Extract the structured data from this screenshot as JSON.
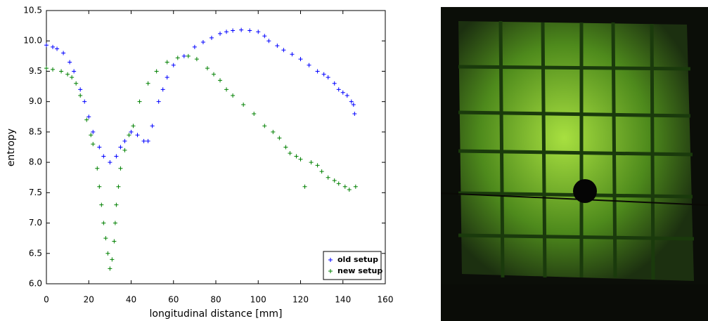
{
  "chart_data": {
    "type": "scatter",
    "xlabel": "longitudinal distance [mm]",
    "ylabel": "entropy",
    "xlim": [
      0,
      160
    ],
    "xticks": [
      0,
      20,
      40,
      60,
      80,
      100,
      120,
      140,
      160
    ],
    "ylim": [
      6.0,
      10.5
    ],
    "yticks": [
      {
        "value": 6,
        "label": "6.0"
      },
      6.5,
      {
        "value": 7,
        "label": "7.0"
      },
      7.5,
      {
        "value": 8,
        "label": "8.0"
      },
      8.5,
      {
        "value": 9,
        "label": "9.0"
      },
      9.5,
      {
        "value": 10,
        "label": "10.0"
      },
      10.5
    ],
    "legend": "lower right",
    "marker": "+",
    "series": [
      {
        "name": "old setup",
        "color": "#0000ff",
        "x": [
          0,
          3,
          5,
          8,
          11,
          13,
          16,
          18,
          20,
          22,
          25,
          27,
          30,
          33,
          35,
          37,
          40,
          43,
          46,
          48,
          50,
          53,
          55,
          57,
          60,
          65,
          70,
          74,
          78,
          82,
          85,
          88,
          92,
          96,
          100,
          103,
          105,
          109,
          112,
          116,
          120,
          124,
          128,
          131,
          133,
          136,
          138,
          140,
          142,
          144,
          145,
          145.5
        ],
        "values": [
          9.93,
          9.9,
          9.87,
          9.8,
          9.65,
          9.5,
          9.2,
          9.0,
          8.75,
          8.5,
          8.25,
          8.1,
          8.0,
          8.1,
          8.25,
          8.35,
          8.5,
          8.45,
          8.35,
          8.35,
          8.6,
          9.0,
          9.2,
          9.4,
          9.6,
          9.75,
          9.9,
          9.98,
          10.05,
          10.12,
          10.15,
          10.17,
          10.18,
          10.17,
          10.15,
          10.08,
          10.0,
          9.92,
          9.85,
          9.78,
          9.7,
          9.6,
          9.5,
          9.45,
          9.4,
          9.3,
          9.2,
          9.15,
          9.1,
          9.0,
          8.95,
          8.8
        ]
      },
      {
        "name": "new setup",
        "color": "#008000",
        "x": [
          0,
          3,
          7,
          10,
          12,
          14,
          16,
          19,
          21,
          22,
          24,
          25,
          26,
          27,
          28,
          29,
          30,
          31,
          32,
          32.5,
          33,
          34,
          35,
          37,
          39,
          41,
          44,
          48,
          52,
          57,
          62,
          67,
          71,
          76,
          79,
          82,
          85,
          88,
          93,
          98,
          103,
          107,
          110,
          113,
          115,
          118,
          120,
          122,
          125,
          128,
          130,
          133,
          136,
          138,
          141,
          143,
          146
        ],
        "values": [
          9.55,
          9.53,
          9.5,
          9.45,
          9.4,
          9.3,
          9.1,
          8.7,
          8.45,
          8.3,
          7.9,
          7.6,
          7.3,
          7.0,
          6.75,
          6.5,
          6.25,
          6.4,
          6.7,
          7.0,
          7.3,
          7.6,
          7.9,
          8.2,
          8.45,
          8.6,
          9.0,
          9.3,
          9.5,
          9.65,
          9.72,
          9.75,
          9.7,
          9.55,
          9.45,
          9.35,
          9.2,
          9.1,
          8.95,
          8.8,
          8.6,
          8.5,
          8.4,
          8.25,
          8.15,
          8.1,
          8.05,
          7.6,
          8.0,
          7.95,
          7.85,
          7.75,
          7.7,
          7.65,
          7.6,
          7.55,
          7.6
        ]
      }
    ]
  }
}
